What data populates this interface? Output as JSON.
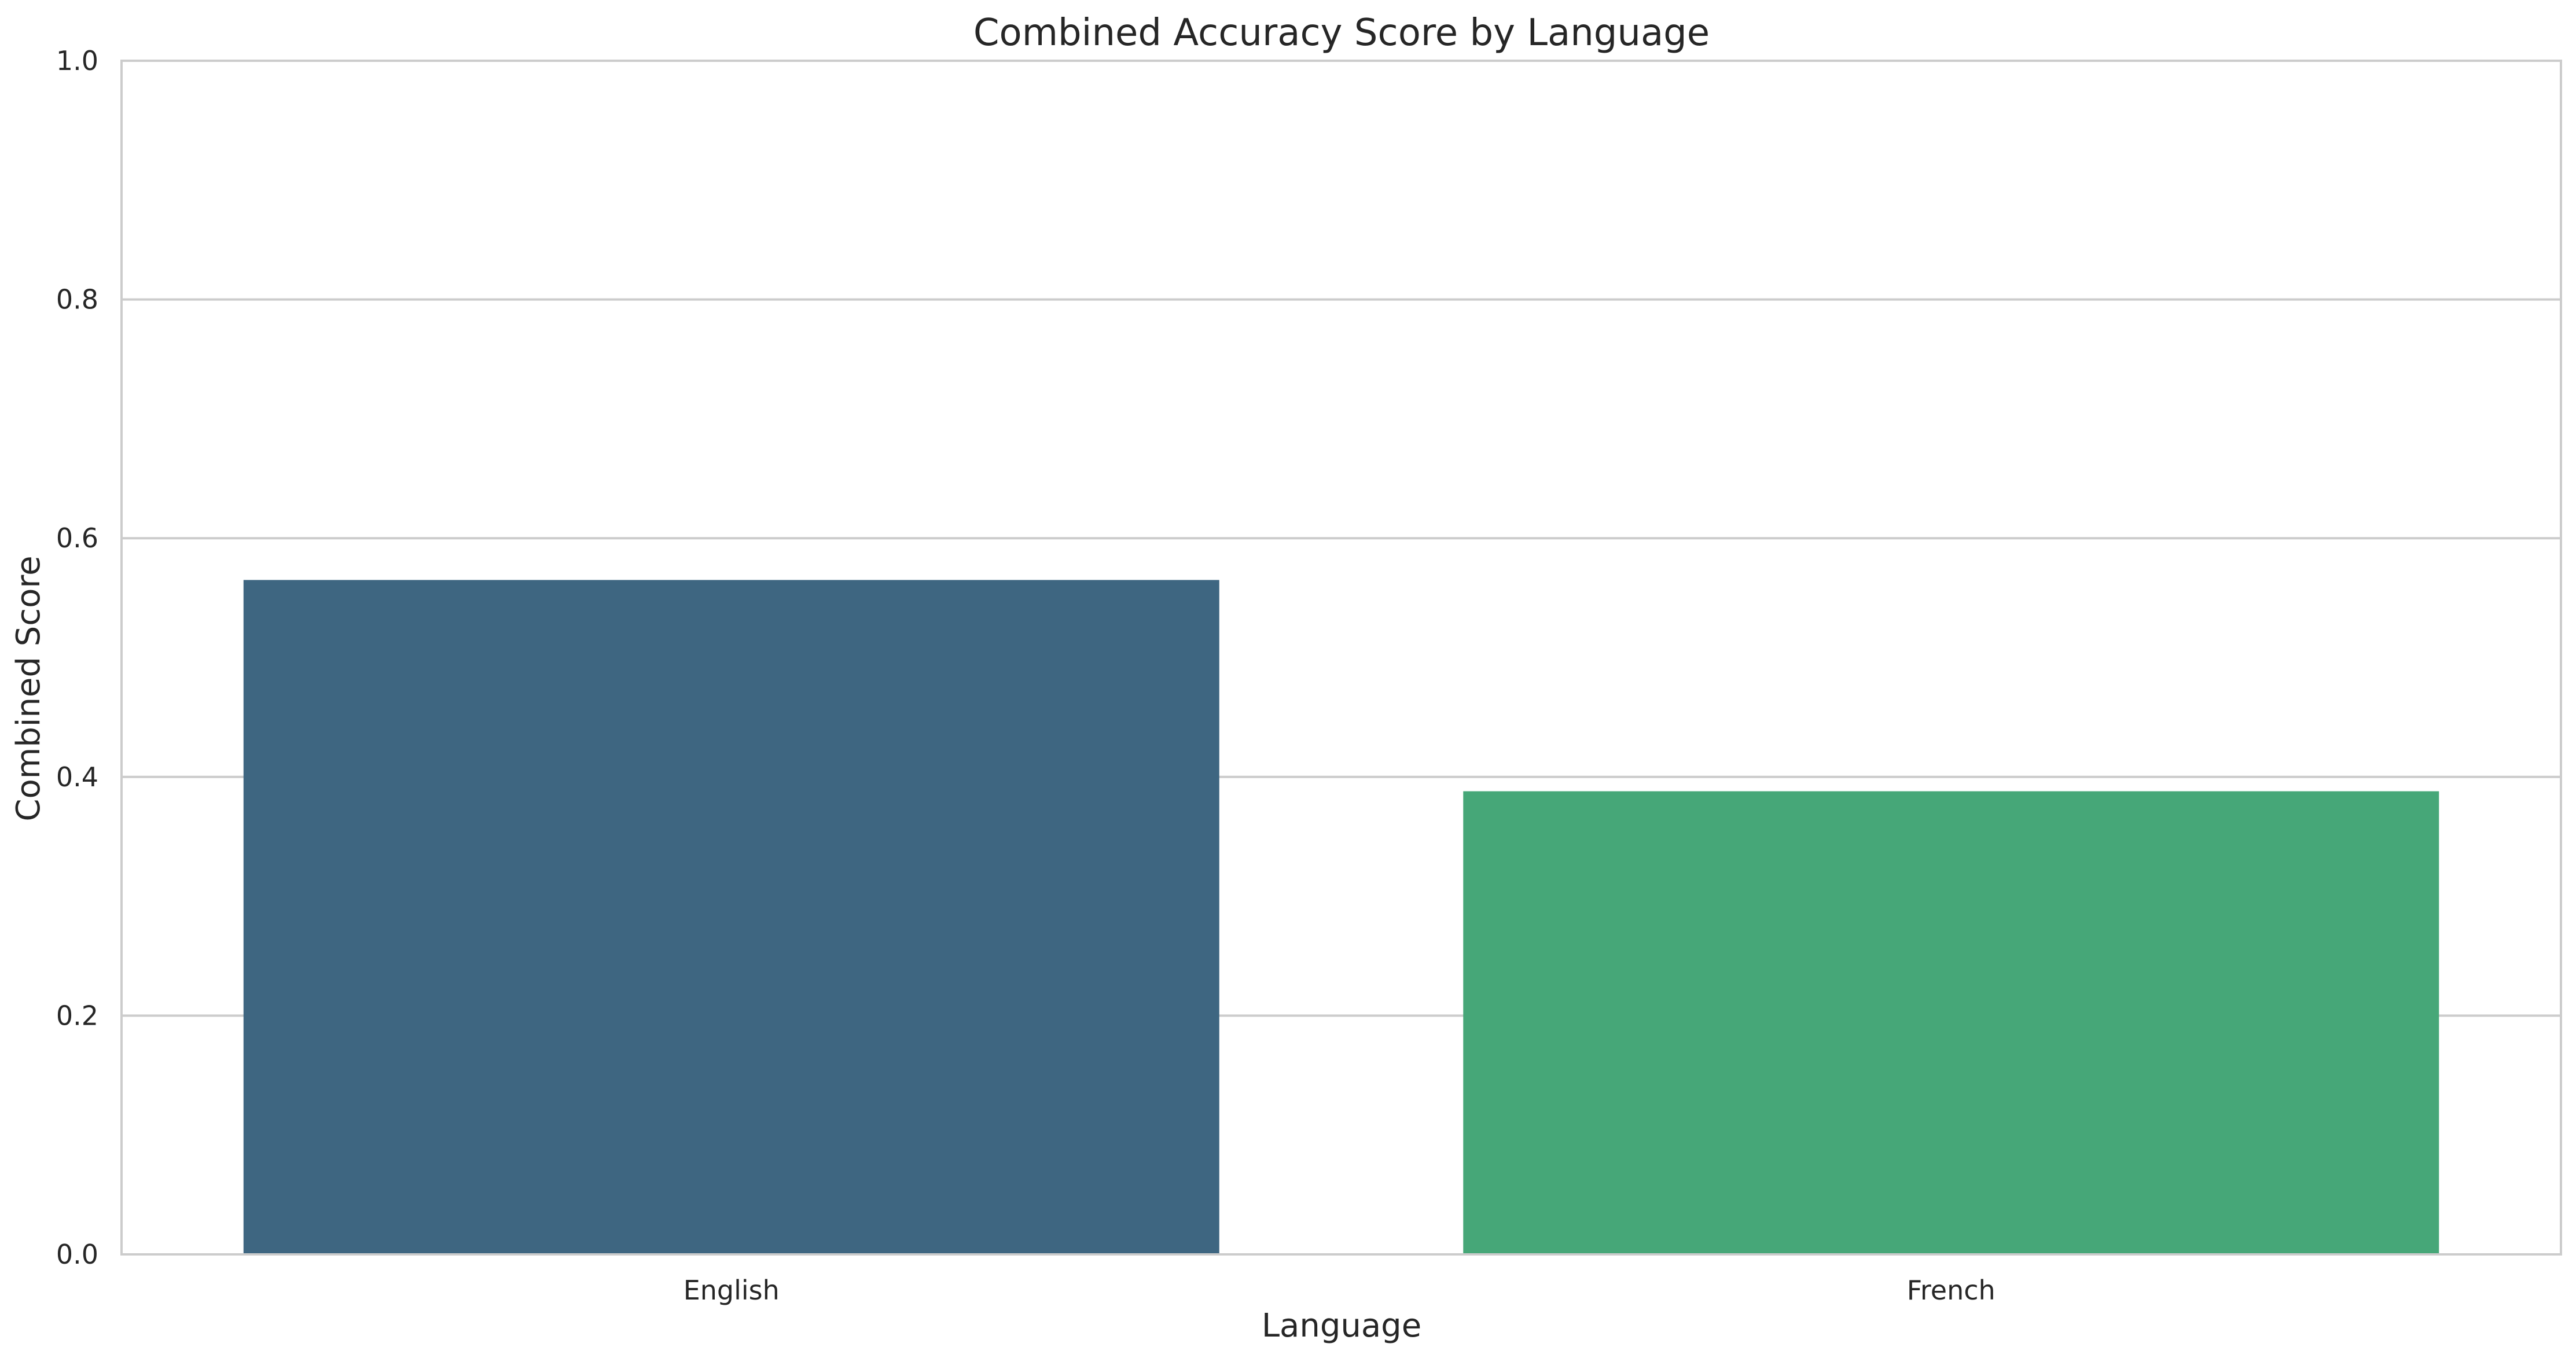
{
  "chart_data": {
    "type": "bar",
    "title": "Combined Accuracy Score by Language",
    "xlabel": "Language",
    "ylabel": "Combined Score",
    "categories": [
      "English",
      "French"
    ],
    "values": [
      0.565,
      0.388
    ],
    "ylim": [
      0,
      1.0
    ],
    "yticks": [
      "0.0",
      "0.2",
      "0.4",
      "0.6",
      "0.8",
      "1.0"
    ],
    "grid": true,
    "colors": [
      "#3e6681",
      "#46a778"
    ]
  }
}
